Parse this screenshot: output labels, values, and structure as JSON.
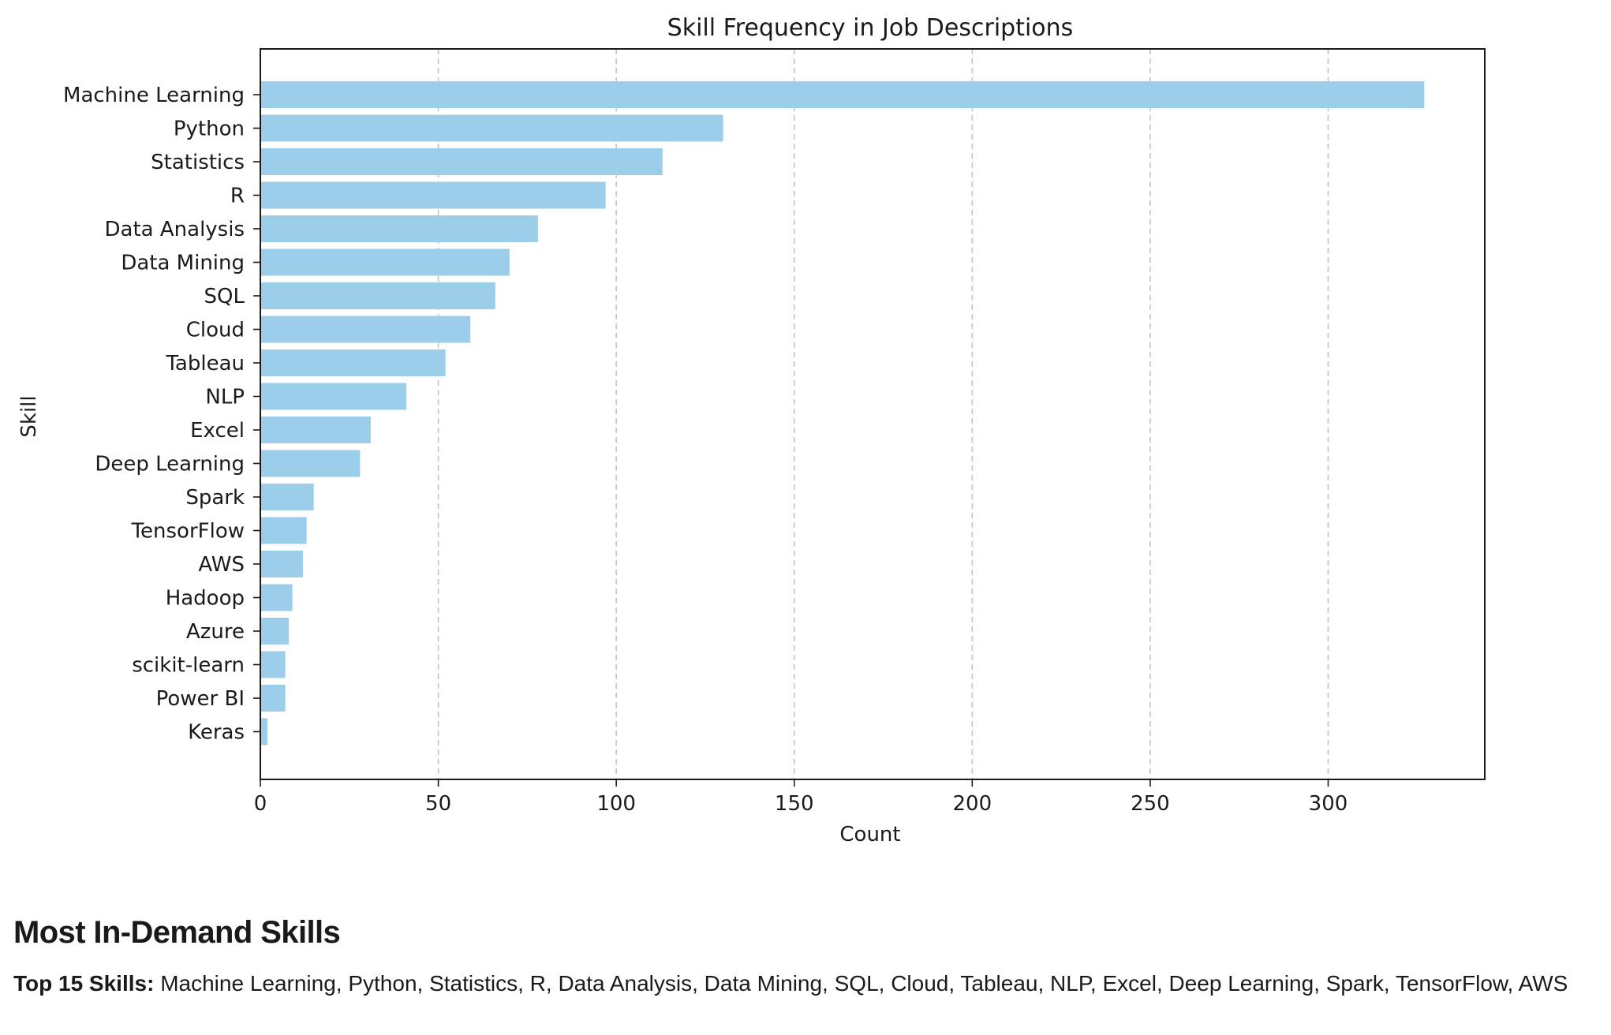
{
  "chart_data": {
    "type": "bar",
    "orientation": "horizontal",
    "title": "Skill Frequency in Job Descriptions",
    "xlabel": "Count",
    "ylabel": "Skill",
    "xlim": [
      0,
      344
    ],
    "xticks": [
      0,
      50,
      100,
      150,
      200,
      250,
      300
    ],
    "grid": "x-dashed",
    "bar_color": "#9ccde9",
    "categories": [
      "Machine Learning",
      "Python",
      "Statistics",
      "R",
      "Data Analysis",
      "Data Mining",
      "SQL",
      "Cloud",
      "Tableau",
      "NLP",
      "Excel",
      "Deep Learning",
      "Spark",
      "TensorFlow",
      "AWS",
      "Hadoop",
      "Azure",
      "scikit-learn",
      "Power BI",
      "Keras"
    ],
    "values": [
      327,
      130,
      113,
      97,
      78,
      70,
      66,
      59,
      52,
      41,
      31,
      28,
      15,
      13,
      12,
      9,
      8,
      7,
      7,
      2
    ]
  },
  "summary": {
    "heading": "Most In-Demand Skills",
    "label": "Top 15 Skills:",
    "text": "Machine Learning, Python, Statistics, R, Data Analysis, Data Mining, SQL, Cloud, Tableau, NLP, Excel, Deep Learning, Spark, TensorFlow, AWS"
  }
}
